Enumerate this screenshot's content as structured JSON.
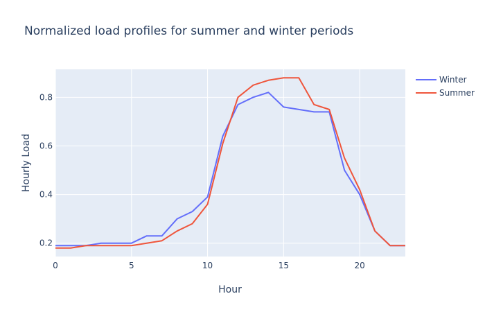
{
  "chart_data": {
    "type": "line",
    "title": "Normalized load profiles for summer and winter periods",
    "xlabel": "Hour",
    "ylabel": "Hourly Load",
    "xlim": [
      0,
      23
    ],
    "ylim": [
      0.145,
      0.915
    ],
    "xticks": [
      0,
      5,
      10,
      15,
      20
    ],
    "yticks": [
      0.2,
      0.4,
      0.6,
      0.8
    ],
    "ytick_labels": [
      "0.2",
      "0.4",
      "0.6",
      "0.8"
    ],
    "grid": true,
    "legend_position": "top-right",
    "x": [
      0,
      1,
      2,
      3,
      4,
      5,
      6,
      7,
      8,
      9,
      10,
      11,
      12,
      13,
      14,
      15,
      16,
      17,
      18,
      19,
      20,
      21,
      22,
      23
    ],
    "series": [
      {
        "name": "Winter",
        "color": "#636efa",
        "values": [
          0.19,
          0.19,
          0.19,
          0.2,
          0.2,
          0.2,
          0.23,
          0.23,
          0.3,
          0.33,
          0.39,
          0.64,
          0.77,
          0.8,
          0.82,
          0.76,
          0.75,
          0.74,
          0.74,
          0.5,
          0.4,
          0.25,
          0.19,
          0.19
        ]
      },
      {
        "name": "Summer",
        "color": "#ef553b",
        "values": [
          0.18,
          0.18,
          0.19,
          0.19,
          0.19,
          0.19,
          0.2,
          0.21,
          0.25,
          0.28,
          0.36,
          0.61,
          0.8,
          0.85,
          0.87,
          0.88,
          0.88,
          0.77,
          0.75,
          0.55,
          0.42,
          0.25,
          0.19,
          0.19
        ]
      }
    ]
  }
}
